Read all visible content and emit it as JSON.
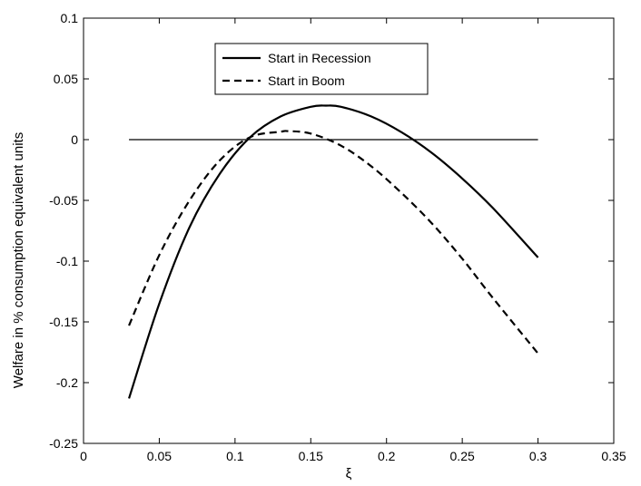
{
  "chart_data": {
    "type": "line",
    "xlabel": "ξ",
    "ylabel": "Welfare in % consumption equivalent units",
    "xlim": [
      0,
      0.35
    ],
    "ylim": [
      -0.25,
      0.1
    ],
    "xticks": [
      "0",
      "0.05",
      "0.1",
      "0.15",
      "0.2",
      "0.25",
      "0.3",
      "0.35"
    ],
    "yticks": [
      "0.1",
      "0.05",
      "0",
      "-0.05",
      "-0.1",
      "-0.15",
      "-0.2",
      "-0.25"
    ],
    "xtick_values": [
      0,
      0.05,
      0.1,
      0.15,
      0.2,
      0.25,
      0.3,
      0.35
    ],
    "ytick_values": [
      0.1,
      0.05,
      0,
      -0.05,
      -0.1,
      -0.15,
      -0.2,
      -0.25
    ],
    "grid": false,
    "legend_position": "top-center",
    "reference_line": {
      "y": 0,
      "x_range": [
        0.03,
        0.3
      ]
    },
    "series": [
      {
        "name": "Start in Recession",
        "style": "solid",
        "color": "#000000",
        "x": [
          0.03,
          0.05,
          0.07,
          0.09,
          0.11,
          0.13,
          0.15,
          0.16,
          0.17,
          0.19,
          0.21,
          0.23,
          0.25,
          0.27,
          0.3
        ],
        "y": [
          -0.213,
          -0.135,
          -0.072,
          -0.028,
          0.002,
          0.019,
          0.027,
          0.028,
          0.027,
          0.019,
          0.006,
          -0.011,
          -0.032,
          -0.056,
          -0.097
        ]
      },
      {
        "name": "Start in Boom",
        "style": "dashed",
        "color": "#000000",
        "x": [
          0.03,
          0.05,
          0.07,
          0.09,
          0.11,
          0.13,
          0.135,
          0.15,
          0.17,
          0.19,
          0.21,
          0.23,
          0.25,
          0.27,
          0.3
        ],
        "y": [
          -0.153,
          -0.095,
          -0.05,
          -0.017,
          0.002,
          0.0065,
          0.007,
          0.005,
          -0.005,
          -0.022,
          -0.044,
          -0.069,
          -0.098,
          -0.13,
          -0.176
        ]
      }
    ]
  }
}
